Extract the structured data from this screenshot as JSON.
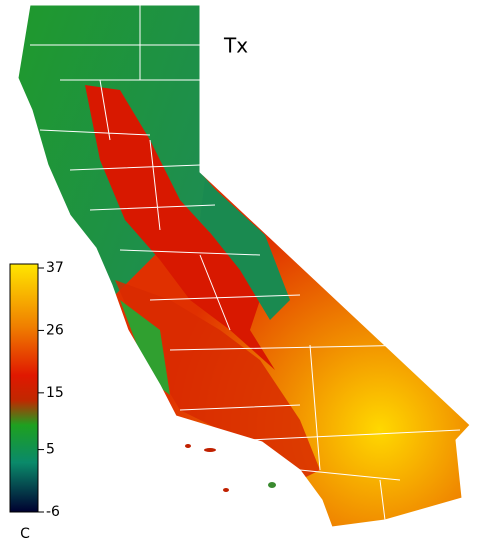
{
  "title": "Tx",
  "colorbar": {
    "unit": "C",
    "range": [
      -6,
      37
    ],
    "ticks": [
      37,
      26,
      15,
      5,
      -6
    ]
  }
}
